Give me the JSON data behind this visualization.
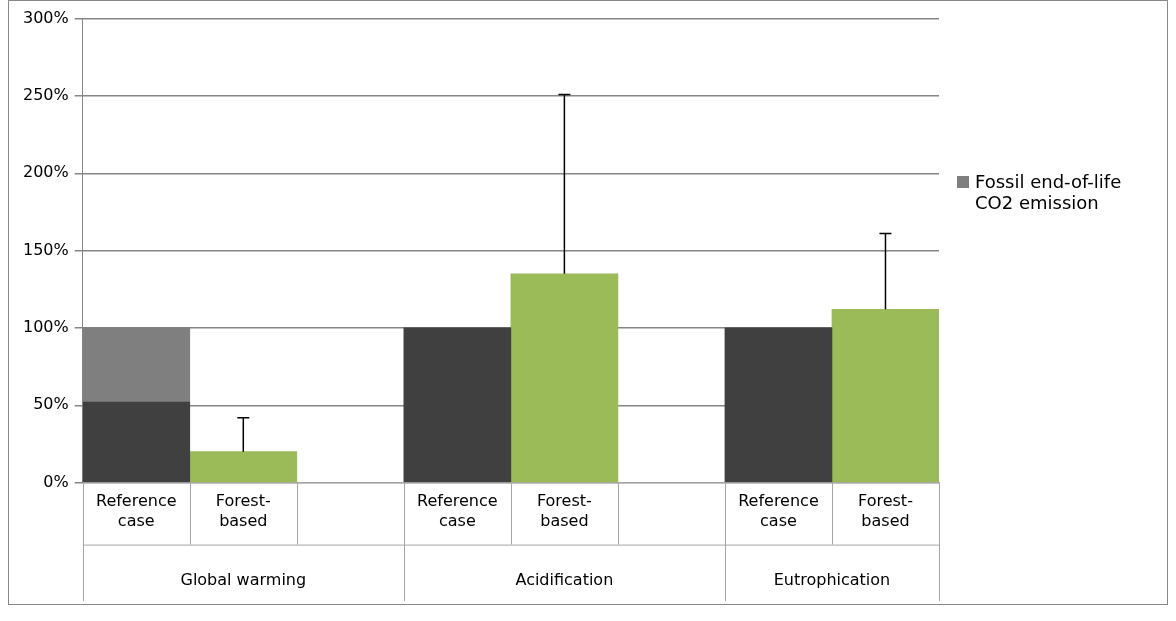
{
  "chart_data": {
    "type": "bar",
    "stacked": true,
    "categories": [
      "Reference case",
      "Forest-based",
      null,
      "Reference case",
      "Forest-based",
      null,
      "Reference case",
      "Forest-based"
    ],
    "series": [
      {
        "color": "#404040",
        "values": [
          52,
          null,
          null,
          100,
          null,
          null,
          100,
          null
        ]
      },
      {
        "name": "Fossil end-of-life CO2 emission",
        "color": "#7f7f7f",
        "values": [
          48,
          null,
          null,
          null,
          null,
          null,
          null,
          null
        ]
      },
      {
        "color": "#9bbb59",
        "values": [
          null,
          20,
          null,
          null,
          135,
          null,
          null,
          112
        ],
        "errors": [
          null,
          [
            20,
            42
          ],
          null,
          null,
          [
            135,
            251
          ],
          null,
          null,
          [
            112,
            161
          ]
        ]
      }
    ],
    "ylim": [
      0,
      300
    ],
    "yticks": [
      {
        "value": 0,
        "label": "0%"
      },
      {
        "value": 50,
        "label": "50%"
      },
      {
        "value": 100,
        "label": "100%"
      },
      {
        "value": 150,
        "label": "150%"
      },
      {
        "value": 200,
        "label": "200%"
      },
      {
        "value": 250,
        "label": "250%"
      },
      {
        "value": 300,
        "label": "300%"
      }
    ],
    "grid": "y",
    "legend": "right",
    "annotations": [
      "Global warming",
      "Acidification",
      "Eutrophication"
    ]
  }
}
